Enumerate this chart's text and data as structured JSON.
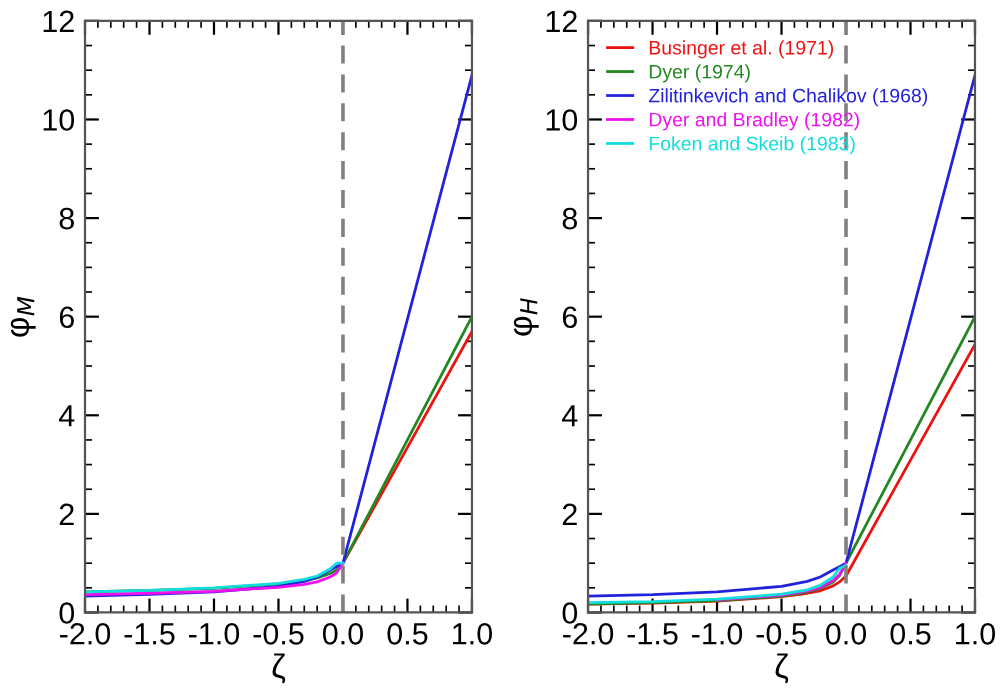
{
  "chart_data": [
    {
      "type": "line",
      "ylabel": "φ$_{M}$",
      "xlabel": "ζ",
      "xlim": [
        -2,
        1
      ],
      "ylim": [
        0,
        12
      ],
      "xticks": [
        {
          "value": -2,
          "label": "-2.0"
        },
        {
          "value": -1.5,
          "label": "-1.5"
        },
        {
          "value": -1,
          "label": "-1.0"
        },
        {
          "value": -0.5,
          "label": "-0.5"
        },
        {
          "value": 0,
          "label": "0.0"
        },
        {
          "value": 0.5,
          "label": "0.5"
        },
        {
          "value": 1,
          "label": "1.0"
        }
      ],
      "yticks": [
        0,
        2,
        4,
        6,
        8,
        10,
        12
      ],
      "grid": false,
      "legend": false,
      "marker": "none",
      "line_style": "solid",
      "ref_lines": [
        {
          "axis": "x",
          "value": 0,
          "label": null,
          "color": "#808080",
          "line_style": "dashed"
        }
      ],
      "series": [
        {
          "color": "#ee1111",
          "x": [
            0,
            0.5,
            1
          ],
          "values": [
            1.0,
            3.35,
            5.7
          ]
        },
        {
          "color": "#228822",
          "x": [
            -2,
            -1.5,
            -1,
            -0.5,
            -0.3,
            -0.2,
            -0.1,
            -0.05,
            0,
            0.5,
            1
          ],
          "values": [
            0.42,
            0.45,
            0.49,
            0.58,
            0.64,
            0.7,
            0.79,
            0.86,
            1.0,
            3.5,
            6.0
          ]
        },
        {
          "color": "#2222dd",
          "x": [
            -2,
            -1.5,
            -1,
            -0.5,
            -0.3,
            -0.2,
            -0.1,
            -0.05,
            0,
            0.5,
            1
          ],
          "values": [
            0.33,
            0.37,
            0.42,
            0.53,
            0.63,
            0.72,
            0.86,
            0.93,
            1.0,
            5.95,
            10.9
          ]
        },
        {
          "color": "#ee11ee",
          "x": [
            -2,
            -1.5,
            -1,
            -0.5,
            -0.3,
            -0.2,
            -0.1,
            -0.05,
            0
          ],
          "values": [
            0.36,
            0.39,
            0.43,
            0.51,
            0.57,
            0.62,
            0.72,
            0.8,
            1.0
          ]
        },
        {
          "color": "#11dddd",
          "x": [
            -2,
            -1.5,
            -1,
            -0.5,
            -0.3,
            -0.2,
            -0.1,
            -0.05,
            0
          ],
          "values": [
            0.42,
            0.45,
            0.5,
            0.59,
            0.67,
            0.74,
            0.88,
            1.0,
            1.0
          ]
        }
      ]
    },
    {
      "type": "line",
      "ylabel": "φ$_{H}$",
      "xlabel": "ζ",
      "xlim": [
        -2,
        1
      ],
      "ylim": [
        0,
        12
      ],
      "xticks": [
        {
          "value": -2,
          "label": "-2.0"
        },
        {
          "value": -1.5,
          "label": "-1.5"
        },
        {
          "value": -1,
          "label": "-1.0"
        },
        {
          "value": -0.5,
          "label": "-0.5"
        },
        {
          "value": 0,
          "label": "0.0"
        },
        {
          "value": 0.5,
          "label": "0.5"
        },
        {
          "value": 1,
          "label": "1.0"
        }
      ],
      "yticks": [
        0,
        2,
        4,
        6,
        8,
        10,
        12
      ],
      "grid": false,
      "legend": "top left",
      "marker": "none",
      "line_style": "solid",
      "ref_lines": [
        {
          "axis": "x",
          "value": 0,
          "label": null,
          "color": "#808080",
          "line_style": "dashed"
        }
      ],
      "series": [
        {
          "name": "Businger et al. (1971)",
          "color": "#ee1111",
          "x": [
            -2,
            -1.5,
            -1,
            -0.5,
            -0.3,
            -0.2,
            -0.1,
            -0.05,
            0,
            0.5,
            1
          ],
          "values": [
            0.17,
            0.19,
            0.23,
            0.32,
            0.39,
            0.44,
            0.54,
            0.62,
            0.74,
            3.09,
            5.44
          ]
        },
        {
          "name": "Dyer (1974)",
          "color": "#228822",
          "x": [
            -2,
            -1.5,
            -1,
            -0.5,
            -0.3,
            -0.2,
            -0.1,
            -0.05,
            0,
            0.5,
            1
          ],
          "values": [
            0.17,
            0.2,
            0.24,
            0.33,
            0.42,
            0.49,
            0.62,
            0.75,
            1.0,
            3.5,
            6.0
          ]
        },
        {
          "name": "Zilitinkevich and Chalikov (1968)",
          "color": "#2222dd",
          "x": [
            -2,
            -1.5,
            -1,
            -0.5,
            -0.3,
            -0.2,
            -0.1,
            -0.05,
            0,
            0.5,
            1
          ],
          "values": [
            0.33,
            0.36,
            0.42,
            0.53,
            0.63,
            0.72,
            0.86,
            0.93,
            1.0,
            5.95,
            10.9
          ]
        },
        {
          "name": "Dyer and Bradley (1982)",
          "color": "#ee11ee",
          "x": [
            -1,
            -0.5,
            -0.3,
            -0.2,
            -0.1,
            -0.05,
            0
          ],
          "values": [
            0.26,
            0.35,
            0.44,
            0.51,
            0.65,
            0.77,
            1.0
          ]
        },
        {
          "name": "Foken and Skeib (1983)",
          "color": "#11dddd",
          "x": [
            -2,
            -1.5,
            -1,
            -0.5,
            -0.3,
            -0.2,
            -0.1,
            -0.05,
            0
          ],
          "values": [
            0.2,
            0.22,
            0.27,
            0.37,
            0.46,
            0.55,
            0.72,
            0.9,
            0.95
          ]
        }
      ]
    }
  ]
}
